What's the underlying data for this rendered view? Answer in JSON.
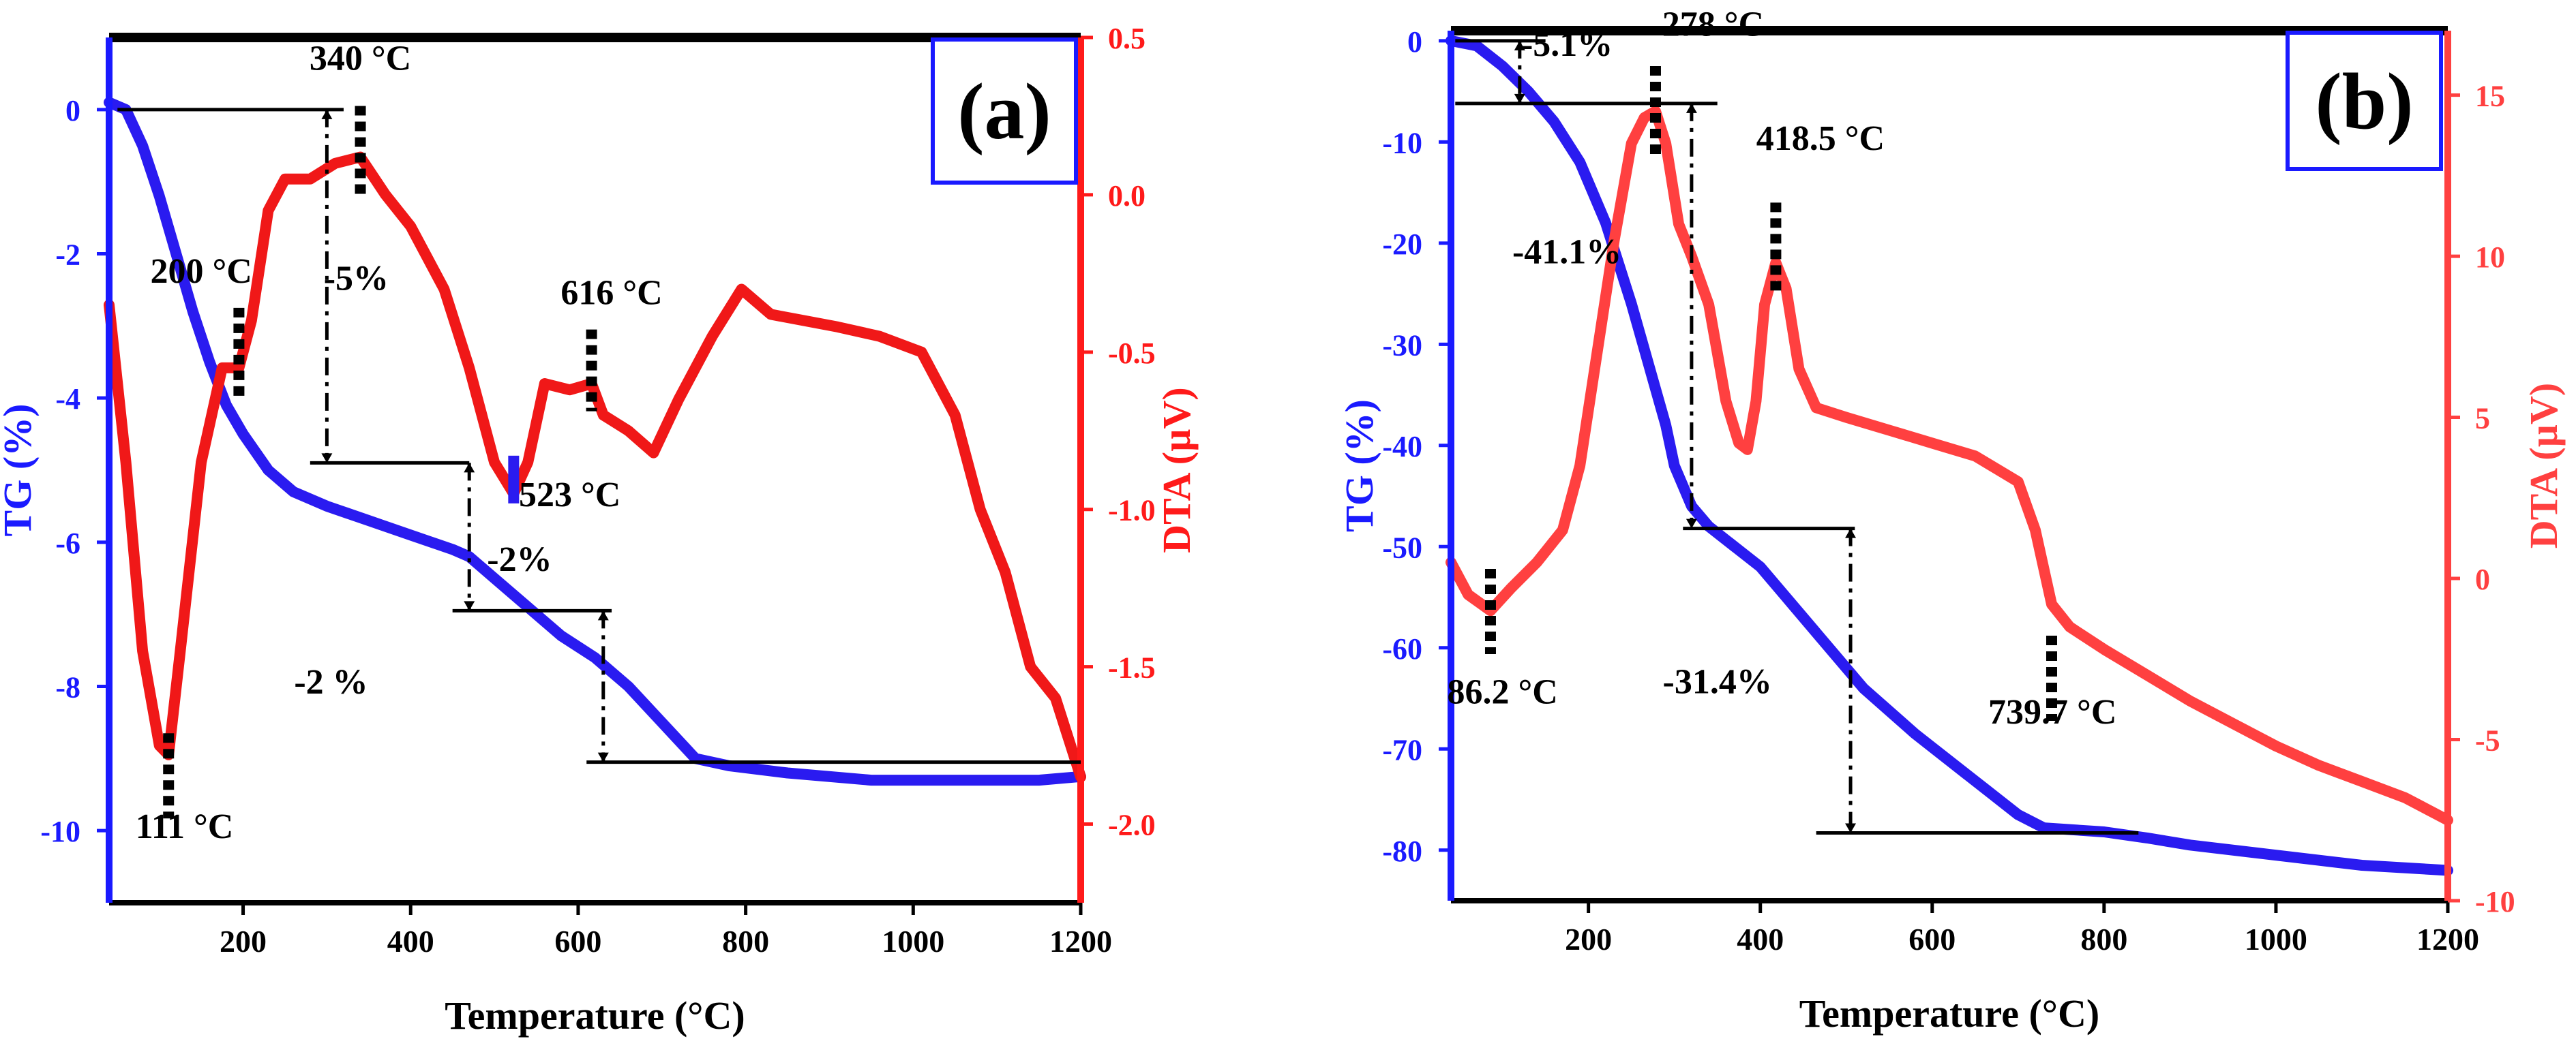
{
  "chart_data": [
    {
      "type": "line",
      "panel_label": "(a)",
      "xlabel": "Temperature (°C)",
      "ylabel_left": "TG (%)",
      "ylabel_right": "DTA (µV)",
      "xlim": [
        40,
        1200
      ],
      "ylim_left": [
        -11,
        1
      ],
      "ylim_right": [
        -2.25,
        0.5
      ],
      "x_ticks": [
        200,
        400,
        600,
        800,
        1000,
        1200
      ],
      "x_tick_labels": [
        "200",
        "400",
        "600",
        "800",
        "1000",
        "1200"
      ],
      "y_left_ticks": [
        0,
        -2,
        -4,
        -6,
        -8,
        -10
      ],
      "y_left_tick_labels": [
        "0",
        "-2",
        "-4",
        "-6",
        "-8",
        "-10"
      ],
      "y_right_ticks": [
        0.5,
        0.0,
        -0.5,
        -1.0,
        -1.5,
        -2.0
      ],
      "y_right_tick_labels": [
        "0.5",
        "0.0",
        "-0.5",
        "-1.0",
        "-1.5",
        "-2.0"
      ],
      "colors": {
        "tg": "#2a1bf0",
        "dta": "#f01818",
        "axis_left": "#1a1aff",
        "axis_right": "#ff1a1a",
        "frame": "#000000"
      },
      "series": [
        {
          "name": "TG",
          "axis": "left",
          "x": [
            40,
            60,
            80,
            100,
            120,
            140,
            160,
            180,
            200,
            230,
            260,
            300,
            350,
            400,
            450,
            470,
            500,
            540,
            580,
            620,
            660,
            700,
            740,
            780,
            850,
            950,
            1050,
            1150,
            1200
          ],
          "y": [
            0.1,
            0.0,
            -0.5,
            -1.2,
            -2.0,
            -2.8,
            -3.5,
            -4.1,
            -4.5,
            -5.0,
            -5.3,
            -5.5,
            -5.7,
            -5.9,
            -6.1,
            -6.2,
            -6.5,
            -6.9,
            -7.3,
            -7.6,
            -8.0,
            -8.5,
            -9.0,
            -9.1,
            -9.2,
            -9.3,
            -9.3,
            -9.3,
            -9.25
          ]
        },
        {
          "name": "DTA",
          "axis": "right",
          "x": [
            40,
            60,
            80,
            100,
            111,
            125,
            150,
            175,
            195,
            210,
            230,
            250,
            280,
            310,
            340,
            370,
            400,
            440,
            470,
            500,
            523,
            540,
            560,
            590,
            616,
            630,
            660,
            690,
            720,
            760,
            795,
            830,
            870,
            910,
            960,
            1010,
            1050,
            1080,
            1110,
            1140,
            1170,
            1200
          ],
          "y": [
            -0.35,
            -0.85,
            -1.45,
            -1.75,
            -1.78,
            -1.45,
            -0.85,
            -0.55,
            -0.55,
            -0.4,
            -0.05,
            0.05,
            0.05,
            0.1,
            0.12,
            0.0,
            -0.1,
            -0.3,
            -0.55,
            -0.85,
            -0.95,
            -0.85,
            -0.6,
            -0.62,
            -0.6,
            -0.7,
            -0.75,
            -0.82,
            -0.65,
            -0.45,
            -0.3,
            -0.38,
            -0.4,
            -0.42,
            -0.45,
            -0.5,
            -0.7,
            -1.0,
            -1.2,
            -1.5,
            -1.6,
            -1.85
          ]
        }
      ],
      "annotations": [
        {
          "text": "340 °C",
          "x": 340,
          "y": 0.55,
          "axis": "left"
        },
        {
          "text": "200 °C",
          "x": 150,
          "y": -2.4,
          "axis": "left"
        },
        {
          "text": "-5%",
          "x": 335,
          "y": -2.5,
          "axis": "left"
        },
        {
          "text": "616 °C",
          "x": 640,
          "y": -2.7,
          "axis": "left"
        },
        {
          "text": "523 °C",
          "x": 590,
          "y": -5.5,
          "axis": "left"
        },
        {
          "text": "-2%",
          "x": 530,
          "y": -6.4,
          "axis": "left"
        },
        {
          "text": "-2 %",
          "x": 305,
          "y": -8.1,
          "axis": "left"
        },
        {
          "text": "111 °C",
          "x": 130,
          "y": -10.1,
          "axis": "left"
        }
      ]
    },
    {
      "type": "line",
      "panel_label": "(b)",
      "xlabel": "Temperature (°C)",
      "ylabel_left": "TG (%)",
      "ylabel_right": "DTA (µV)",
      "xlim": [
        40,
        1200
      ],
      "ylim_left": [
        -85,
        1
      ],
      "ylim_right": [
        -10,
        17
      ],
      "x_ticks": [
        200,
        400,
        600,
        800,
        1000,
        1200
      ],
      "x_tick_labels": [
        "200",
        "400",
        "600",
        "800",
        "1000",
        "1200"
      ],
      "y_left_ticks": [
        0,
        -10,
        -20,
        -30,
        -40,
        -50,
        -60,
        -70,
        -80
      ],
      "y_left_tick_labels": [
        "0",
        "-10",
        "-20",
        "-30",
        "-40",
        "-50",
        "-60",
        "-70",
        "-80"
      ],
      "y_right_ticks": [
        15,
        10,
        5,
        0,
        -5,
        -10
      ],
      "y_right_tick_labels": [
        "15",
        "10",
        "5",
        "0",
        "-5",
        "-10"
      ],
      "colors": {
        "tg": "#2a1bf0",
        "dta": "#ff4040",
        "axis_left": "#1a1aff",
        "axis_right": "#ff4040",
        "frame": "#000000"
      },
      "series": [
        {
          "name": "TG",
          "axis": "left",
          "x": [
            40,
            70,
            100,
            130,
            160,
            190,
            220,
            250,
            270,
            290,
            300,
            320,
            340,
            370,
            400,
            430,
            470,
            520,
            580,
            640,
            700,
            730,
            800,
            850,
            900,
            1000,
            1100,
            1200
          ],
          "y": [
            0,
            -0.5,
            -2.5,
            -5.0,
            -8.0,
            -12.0,
            -18.0,
            -26.0,
            -32.0,
            -38.0,
            -42.0,
            -46.0,
            -48.0,
            -50.0,
            -52.0,
            -55.0,
            -59.0,
            -64.0,
            -68.5,
            -72.5,
            -76.5,
            -77.8,
            -78.2,
            -78.8,
            -79.5,
            -80.5,
            -81.5,
            -82.0
          ]
        },
        {
          "name": "DTA",
          "axis": "right",
          "x": [
            40,
            60,
            86,
            110,
            140,
            170,
            190,
            210,
            230,
            250,
            265,
            278,
            290,
            305,
            320,
            340,
            360,
            375,
            385,
            395,
            405,
            418,
            430,
            445,
            465,
            500,
            550,
            600,
            650,
            700,
            720,
            739,
            760,
            800,
            850,
            900,
            950,
            1000,
            1050,
            1100,
            1150,
            1200
          ],
          "y": [
            0.5,
            -0.5,
            -1.0,
            -0.3,
            0.5,
            1.5,
            3.5,
            7.0,
            10.5,
            13.5,
            14.3,
            14.5,
            13.5,
            11.0,
            10.0,
            8.5,
            5.5,
            4.2,
            4.0,
            5.5,
            8.5,
            9.8,
            9.0,
            6.5,
            5.3,
            5.0,
            4.6,
            4.2,
            3.8,
            3.0,
            1.5,
            -0.8,
            -1.5,
            -2.2,
            -3.0,
            -3.8,
            -4.5,
            -5.2,
            -5.8,
            -6.3,
            -6.8,
            -7.5
          ]
        }
      ],
      "annotations": [
        {
          "text": "-5.1%",
          "x": 175,
          "y": -1.5,
          "axis": "left"
        },
        {
          "text": "278 °C",
          "x": 345,
          "y": 0.5,
          "axis": "left"
        },
        {
          "text": "418.5 °C",
          "x": 470,
          "y": -10.8,
          "axis": "left"
        },
        {
          "text": "-41.1%",
          "x": 175,
          "y": -22.0,
          "axis": "left"
        },
        {
          "text": "86.2 °C",
          "x": 100,
          "y": -65.5,
          "axis": "left"
        },
        {
          "text": "-31.4%",
          "x": 350,
          "y": -64.5,
          "axis": "left"
        },
        {
          "text": "739.7 °C",
          "x": 740,
          "y": -67.5,
          "axis": "left"
        }
      ]
    }
  ]
}
